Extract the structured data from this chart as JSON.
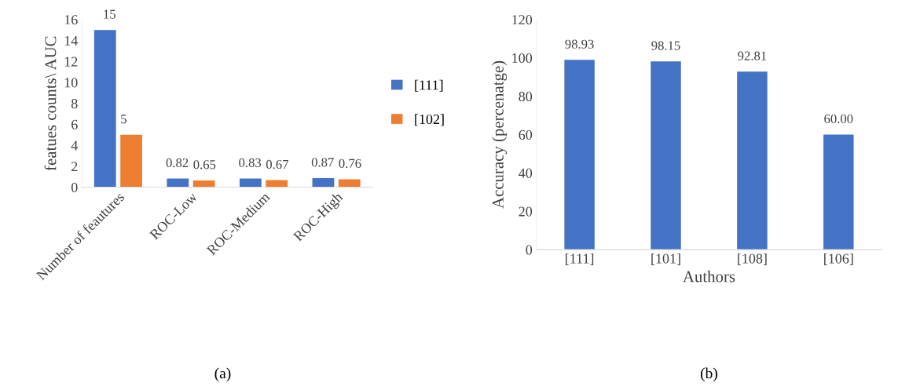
{
  "chart_data": [
    {
      "type": "bar",
      "ylabel": "featues counts\\ AUC",
      "categories": [
        "Number of feautures",
        "ROC-Low",
        "ROC-Medium",
        "ROC-High"
      ],
      "series": [
        {
          "name": "[111]",
          "color": "#4472c4",
          "values": [
            15,
            0.82,
            0.83,
            0.87
          ]
        },
        {
          "name": "[102]",
          "color": "#ed7d31",
          "values": [
            5,
            0.65,
            0.67,
            0.76
          ]
        }
      ],
      "ylim": [
        0,
        16
      ],
      "yticks": [
        0,
        2,
        4,
        6,
        8,
        10,
        12,
        14,
        16
      ],
      "data_labels": true,
      "legend": "right",
      "grid": false,
      "annotations": [
        "(a)"
      ]
    },
    {
      "type": "bar",
      "xlabel": "Authors",
      "ylabel": "Accuracy (percenatge)",
      "categories": [
        "[111]",
        "[101]",
        "[108]",
        "[106]"
      ],
      "values": [
        98.93,
        98.15,
        92.81,
        60.0
      ],
      "value_labels": [
        "98.93",
        "98.15",
        "92.81",
        "60.00"
      ],
      "color": "#4472c4",
      "ylim": [
        0,
        120
      ],
      "yticks": [
        0,
        20,
        40,
        60,
        80,
        100,
        120
      ],
      "grid": false,
      "annotations": [
        "(b)"
      ]
    }
  ]
}
